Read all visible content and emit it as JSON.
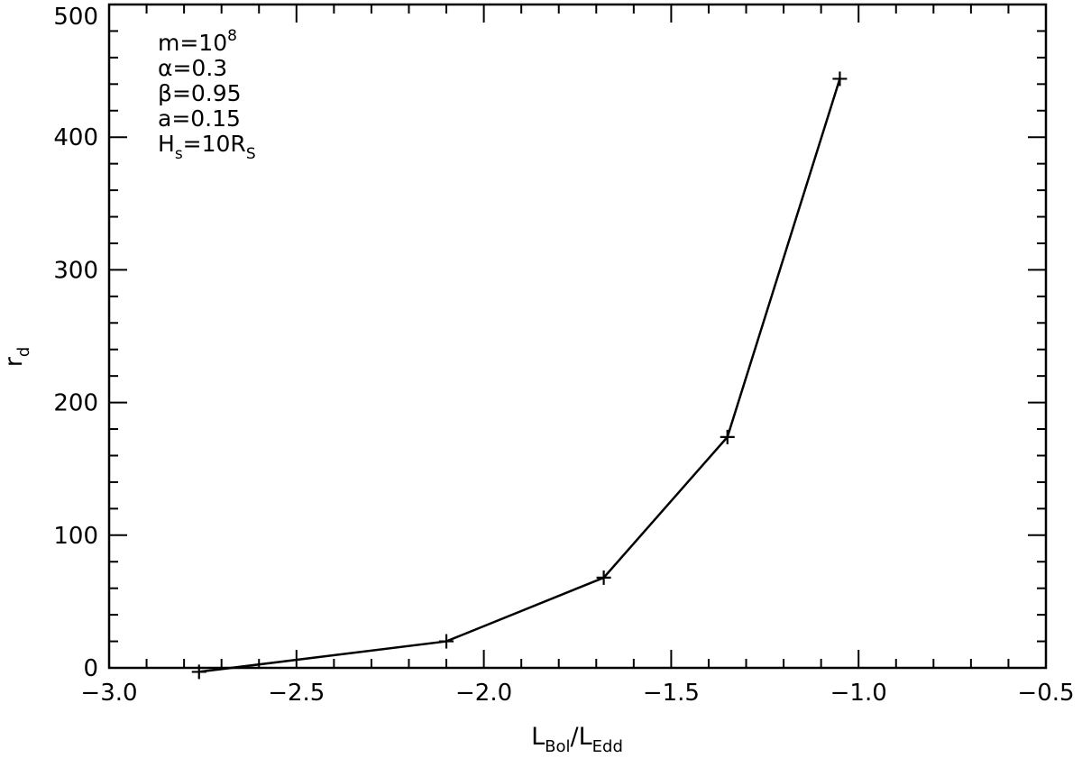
{
  "chart_data": {
    "type": "line",
    "title": "",
    "xlabel": {
      "main": "L",
      "sub1": "Bol",
      "sep": "/",
      "main2": "L",
      "sub2": "Edd"
    },
    "ylabel": {
      "main": "r",
      "sub": "d"
    },
    "xlim": [
      -3.0,
      -0.5
    ],
    "ylim": [
      0,
      500
    ],
    "x_ticks": [
      -3.0,
      -2.5,
      -2.0,
      -1.5,
      -1.0,
      -0.5
    ],
    "x_tick_labels": [
      "−3.0",
      "−2.5",
      "−2.0",
      "−1.5",
      "−1.0",
      "−0.5"
    ],
    "y_ticks": [
      0,
      100,
      200,
      300,
      400,
      500
    ],
    "y_tick_labels": [
      "0",
      "100",
      "200",
      "300",
      "400",
      "500"
    ],
    "grid": false,
    "marker": "plus",
    "line_color": "#000000",
    "series": [
      {
        "x": [
          -2.76,
          -2.1,
          -1.68,
          -1.35,
          -1.05
        ],
        "y": [
          -3,
          20,
          68,
          174,
          444
        ]
      }
    ],
    "annotations": [
      {
        "main": "m=10",
        "sup": "8"
      },
      {
        "main": "α=0.3"
      },
      {
        "main": "β=0.95"
      },
      {
        "main": "a=0.15"
      },
      {
        "main": "H",
        "sub": "s",
        "main2": "=10R",
        "sub2": "S"
      }
    ]
  }
}
